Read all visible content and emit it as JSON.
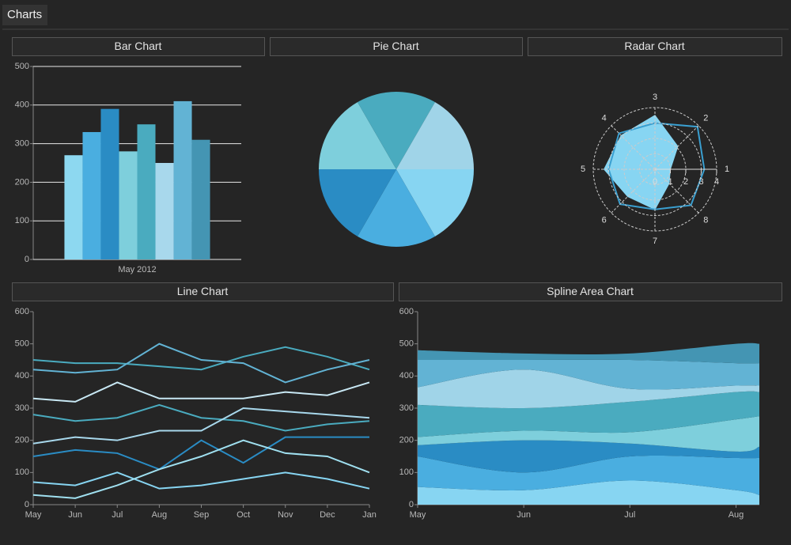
{
  "header": {
    "title": "Charts"
  },
  "chart_data": [
    {
      "type": "bar",
      "title": "Bar Chart",
      "categories": [
        "May 2012"
      ],
      "series": [
        {
          "color": "#8dd8f0",
          "values": [
            270
          ]
        },
        {
          "color": "#4aaee0",
          "values": [
            330
          ]
        },
        {
          "color": "#2a8cc4",
          "values": [
            390
          ]
        },
        {
          "color": "#7ecfdc",
          "values": [
            280
          ]
        },
        {
          "color": "#4aabbf",
          "values": [
            350
          ]
        },
        {
          "color": "#a8d8ec",
          "values": [
            250
          ]
        },
        {
          "color": "#62b3d4",
          "values": [
            410
          ]
        },
        {
          "color": "#4495b3",
          "values": [
            310
          ]
        }
      ],
      "ylim": [
        0,
        500
      ],
      "yticks": [
        0,
        100,
        200,
        300,
        400,
        500
      ],
      "grid": true
    },
    {
      "type": "pie",
      "title": "Pie Chart",
      "values": [
        1,
        1,
        1,
        1,
        1,
        1
      ],
      "colors": [
        "#7ecfdc",
        "#4aabbf",
        "#a0d4e8",
        "#87d5f2",
        "#4aaee0",
        "#2a8cc4"
      ]
    },
    {
      "type": "radar",
      "title": "Radar Chart",
      "categories": [
        "1",
        "2",
        "3",
        "4",
        "5",
        "6",
        "7",
        "8"
      ],
      "rlim": [
        0,
        4
      ],
      "rticks": [
        0,
        1,
        2,
        3,
        4
      ],
      "series": [
        {
          "color": "#87d5f2",
          "fill": true,
          "values": [
            1,
            2.1,
            3.5,
            3.1,
            3.3,
            2.5,
            2.6,
            1.3
          ]
        },
        {
          "color": "#3a9fd0",
          "fill": false,
          "values": [
            3.2,
            3.9,
            3,
            3.3,
            3,
            3.2,
            2.6,
            3.3
          ]
        }
      ]
    },
    {
      "type": "line",
      "title": "Line Chart",
      "categories": [
        "May",
        "Jun",
        "Jul",
        "Aug",
        "Sep",
        "Oct",
        "Nov",
        "Dec",
        "Jan"
      ],
      "series": [
        {
          "color": "#4aabbf",
          "values": [
            450,
            440,
            440,
            430,
            420,
            460,
            490,
            460,
            420
          ]
        },
        {
          "color": "#62b3d4",
          "values": [
            420,
            410,
            420,
            500,
            450,
            440,
            380,
            420,
            450
          ]
        },
        {
          "color": "#c8e8f4",
          "values": [
            330,
            320,
            380,
            330,
            330,
            330,
            350,
            340,
            380
          ]
        },
        {
          "color": "#4aabbf",
          "values": [
            280,
            260,
            270,
            310,
            270,
            260,
            230,
            250,
            260
          ]
        },
        {
          "color": "#a8d8ec",
          "values": [
            190,
            210,
            200,
            230,
            230,
            300,
            290,
            280,
            270
          ]
        },
        {
          "color": "#2a8cc4",
          "values": [
            150,
            170,
            160,
            110,
            200,
            130,
            210,
            210,
            210
          ]
        },
        {
          "color": "#87d5f2",
          "values": [
            70,
            60,
            100,
            50,
            60,
            80,
            100,
            80,
            50
          ]
        },
        {
          "color": "#a0e0f0",
          "values": [
            30,
            20,
            60,
            110,
            150,
            200,
            160,
            150,
            100
          ]
        }
      ],
      "ylim": [
        0,
        600
      ],
      "yticks": [
        0,
        100,
        200,
        300,
        400,
        500,
        600
      ],
      "grid": false
    },
    {
      "type": "area",
      "title": "Spline Area Chart",
      "stacked": true,
      "x": [
        0,
        1,
        2,
        3,
        3.22
      ],
      "xlim": [
        0,
        3.22
      ],
      "xticks": [
        {
          "value": 0,
          "label": "May"
        },
        {
          "value": 1,
          "label": "Jun"
        },
        {
          "value": 2,
          "label": "Jul"
        },
        {
          "value": 3,
          "label": "Aug"
        }
      ],
      "series": [
        {
          "color": "#87d5f2",
          "values": [
            55,
            45,
            75,
            45,
            30
          ]
        },
        {
          "color": "#4aaee0",
          "values": [
            95,
            55,
            75,
            100,
            115
          ]
        },
        {
          "color": "#2a8cc4",
          "values": [
            35,
            100,
            40,
            20,
            35
          ]
        },
        {
          "color": "#7ecfdc",
          "values": [
            25,
            30,
            35,
            100,
            95
          ]
        },
        {
          "color": "#4aabbf",
          "values": [
            100,
            70,
            95,
            85,
            75
          ]
        },
        {
          "color": "#a0d4e8",
          "values": [
            55,
            120,
            40,
            20,
            20
          ]
        },
        {
          "color": "#62b3d4",
          "values": [
            85,
            30,
            90,
            70,
            70
          ]
        },
        {
          "color": "#4495b3",
          "values": [
            30,
            20,
            20,
            60,
            60
          ]
        }
      ],
      "ylim": [
        0,
        600
      ],
      "yticks": [
        0,
        100,
        200,
        300,
        400,
        500,
        600
      ],
      "grid": false
    }
  ]
}
